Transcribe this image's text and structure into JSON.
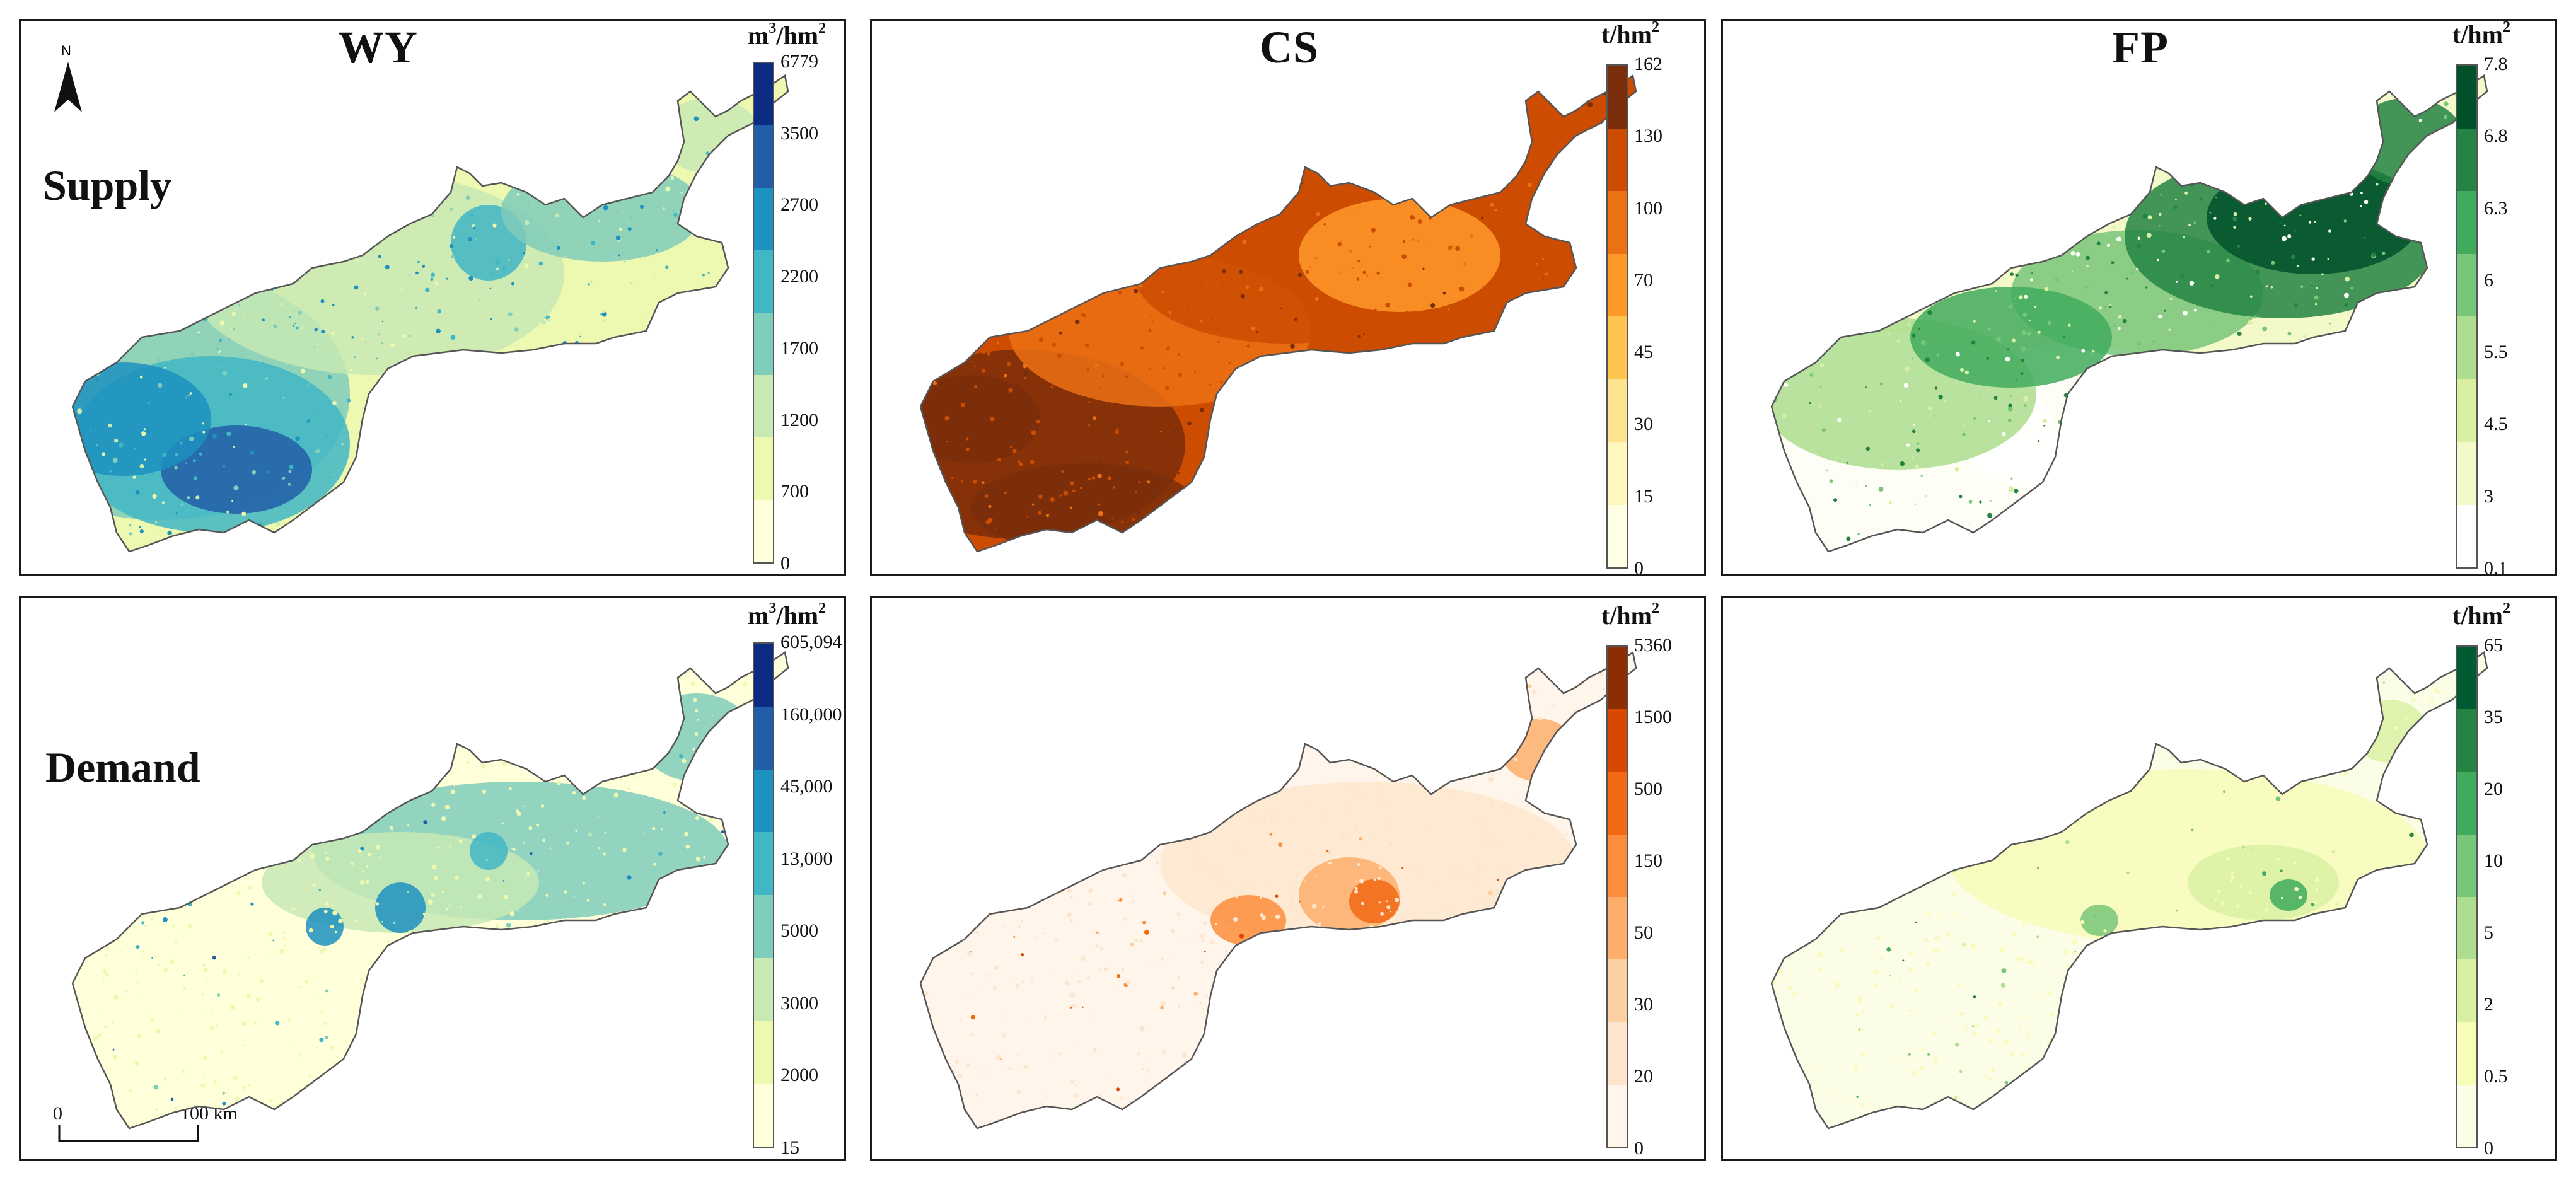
{
  "panels": [
    {
      "id": "wy-supply",
      "title": "WY",
      "row_label": "Supply",
      "unit_base": "m",
      "unit_sup1": "3",
      "unit_mid": "/hm",
      "unit_sup2": "2",
      "colors": [
        "#ffffd9",
        "#edf8b1",
        "#c7e9b4",
        "#7fcdbb",
        "#41b6c4",
        "#1d91c0",
        "#225ea8",
        "#0c2c84"
      ],
      "ticks": [
        "0",
        "700",
        "1200",
        "1700",
        "2200",
        "2700",
        "3500",
        "6779"
      ]
    },
    {
      "id": "cs-supply",
      "title": "CS",
      "unit_base": "t/hm",
      "unit_sup2": "2",
      "colors": [
        "#ffffe5",
        "#fff7bc",
        "#fee391",
        "#fec44f",
        "#fe9929",
        "#ec7014",
        "#cc4c02",
        "#7a2d0a"
      ],
      "ticks": [
        "0",
        "15",
        "30",
        "45",
        "70",
        "100",
        "130",
        "162"
      ]
    },
    {
      "id": "fp-supply",
      "title": "FP",
      "unit_base": "t/hm",
      "unit_sup2": "2",
      "colors": [
        "#ffffff",
        "#f3f9c8",
        "#d9f0a3",
        "#addd8e",
        "#78c679",
        "#41ab5d",
        "#238443",
        "#00512a"
      ],
      "ticks": [
        "0.1",
        "3",
        "4.5",
        "5.5",
        "6",
        "6.3",
        "6.8",
        "7.8"
      ]
    },
    {
      "id": "wy-demand",
      "row_label": "Demand",
      "unit_base": "m",
      "unit_sup1": "3",
      "unit_mid": "/hm",
      "unit_sup2": "2",
      "colors": [
        "#ffffd9",
        "#edf8b1",
        "#c7e9b4",
        "#7fcdbb",
        "#41b6c4",
        "#1d91c0",
        "#225ea8",
        "#0c2c84"
      ],
      "ticks": [
        "15",
        "2000",
        "3000",
        "5000",
        "13,000",
        "45,000",
        "160,000",
        "605,094"
      ]
    },
    {
      "id": "cs-demand",
      "unit_base": "t/hm",
      "unit_sup2": "2",
      "colors": [
        "#fff5eb",
        "#fee6ce",
        "#fdd0a2",
        "#fdae6b",
        "#fd8d3c",
        "#f16913",
        "#d94801",
        "#8c2d04"
      ],
      "ticks": [
        "0",
        "20",
        "30",
        "50",
        "150",
        "500",
        "1500",
        "5360"
      ]
    },
    {
      "id": "fp-demand",
      "unit_base": "t/hm",
      "unit_sup2": "2",
      "colors": [
        "#fbfde6",
        "#f7fcb9",
        "#d9f0a3",
        "#addd8e",
        "#78c679",
        "#41ab5d",
        "#238443",
        "#005a32"
      ],
      "ticks": [
        "0",
        "0.5",
        "2",
        "5",
        "10",
        "20",
        "35",
        "65"
      ]
    }
  ],
  "north_arrow": {
    "label": "N"
  },
  "scale_bar": {
    "start": "0",
    "end": "100 km"
  }
}
